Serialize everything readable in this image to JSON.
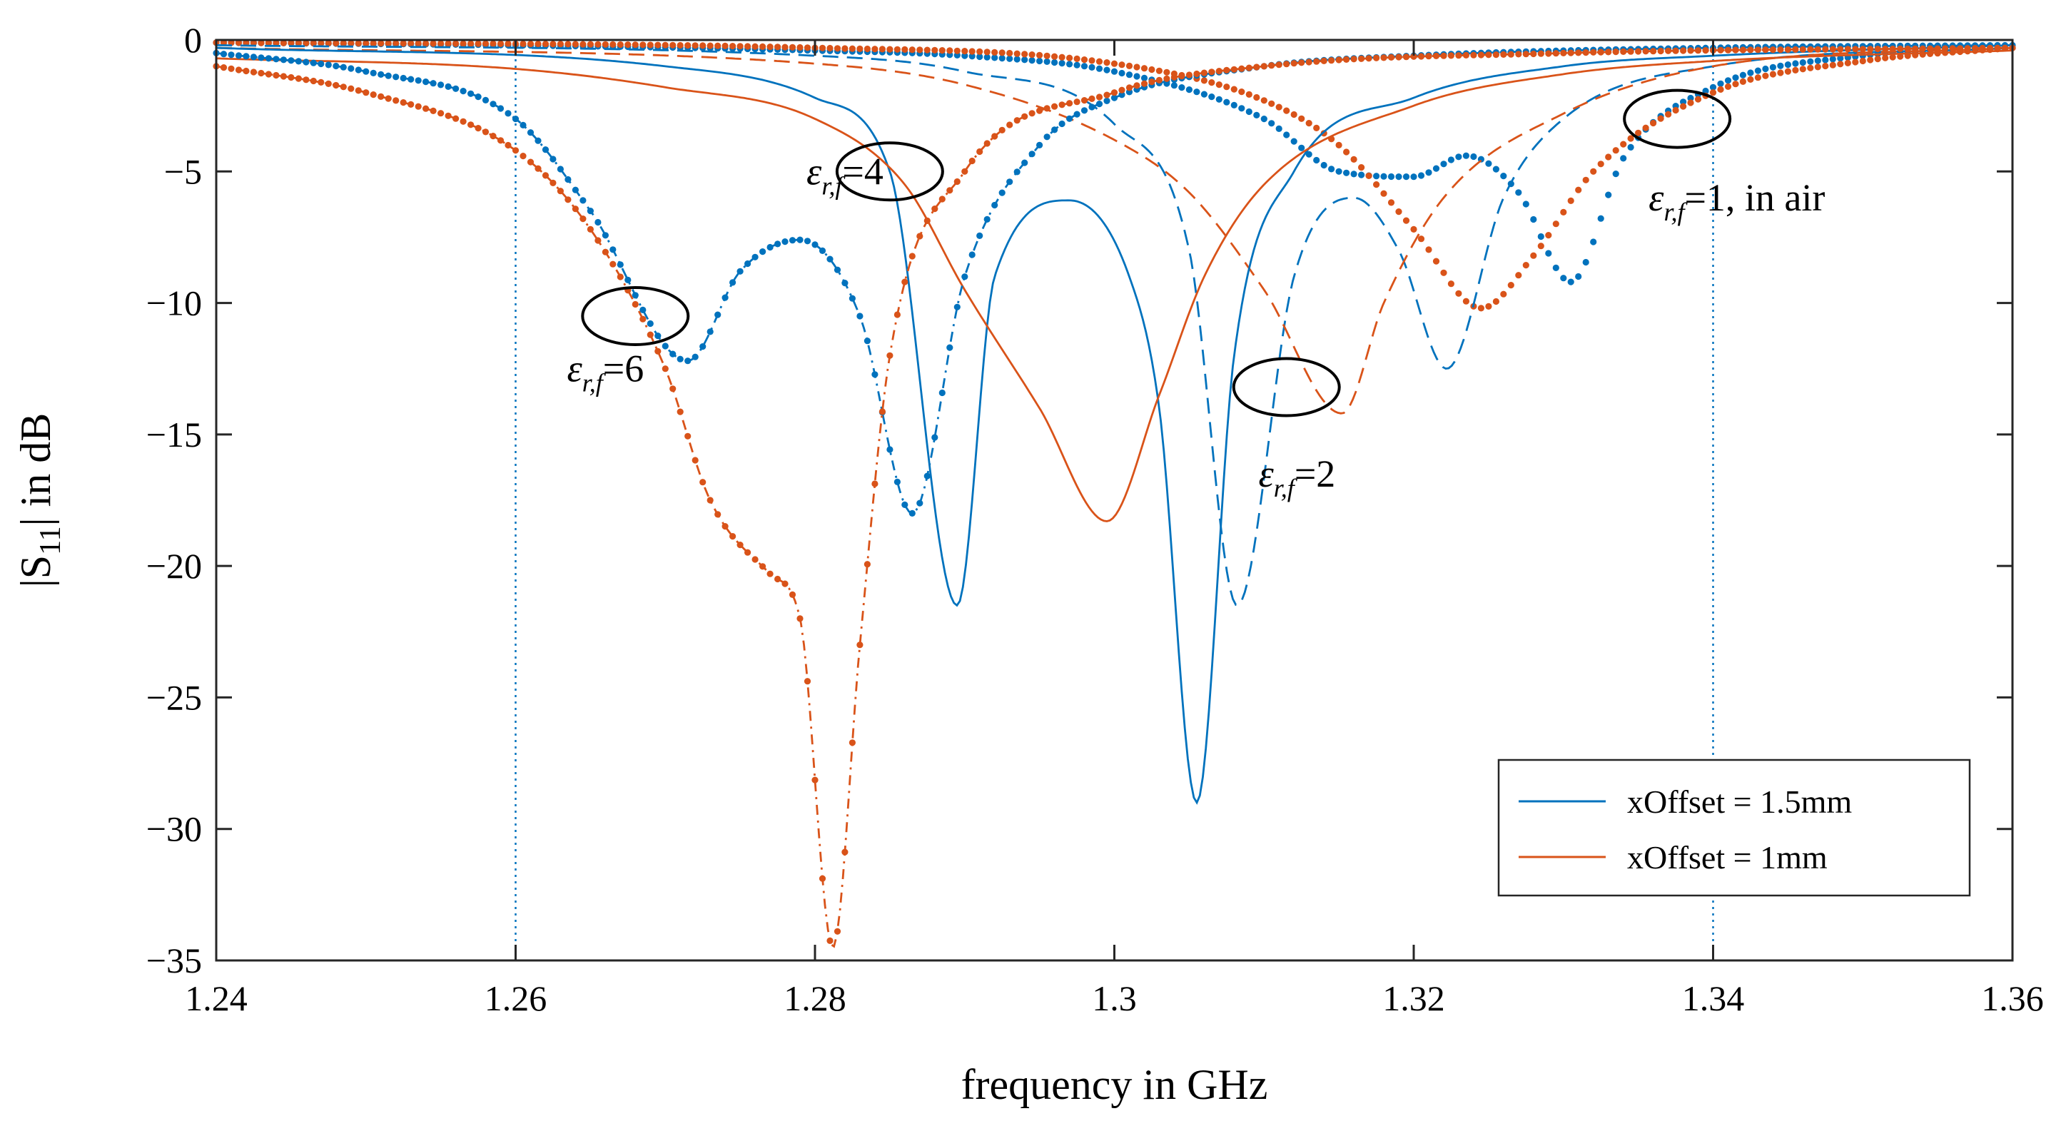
{
  "chart_data": {
    "type": "line",
    "title": "",
    "xlabel": "frequency in GHz",
    "ylabel_main": "|S",
    "ylabel_sub": "11",
    "ylabel_tail": "| in dB",
    "xlim": [
      1.24,
      1.36
    ],
    "ylim": [
      -35,
      0
    ],
    "xticks": [
      1.24,
      1.26,
      1.28,
      1.3,
      1.32,
      1.34,
      1.36
    ],
    "xtick_labels": [
      "1.24",
      "1.26",
      "1.28",
      "1.3",
      "1.32",
      "1.34",
      "1.36"
    ],
    "yticks": [
      0,
      -5,
      -10,
      -15,
      -20,
      -25,
      -30,
      -35
    ],
    "ytick_labels": [
      "0",
      "−5",
      "−10",
      "−15",
      "−20",
      "−25",
      "−30",
      "−35"
    ],
    "vlines": [
      1.26,
      1.34
    ],
    "colors": {
      "xoffset_1_5": "#0072BD",
      "xoffset_1": "#D95319"
    },
    "legend": {
      "position": "bottom-right",
      "entries": [
        {
          "label": "xOffset = 1.5mm",
          "color": "#0072BD"
        },
        {
          "label": "xOffset = 1mm",
          "color": "#D95319"
        }
      ]
    },
    "annotations": [
      {
        "eps": "ε",
        "sub": "r,f",
        "text": "=4",
        "target": [
          1.285,
          -5
        ],
        "label_at": [
          1.282,
          -5
        ]
      },
      {
        "eps": "ε",
        "sub": "r,f",
        "text": "=6",
        "target": [
          1.268,
          -10.5
        ],
        "label_at": [
          1.266,
          -12.5
        ]
      },
      {
        "eps": "ε",
        "sub": "r,f",
        "text": "=2",
        "target": [
          1.3115,
          -13.2
        ],
        "label_at": [
          1.3122,
          -16.5
        ]
      },
      {
        "eps": "ε",
        "sub": "r,f",
        "text": "=1, in air",
        "target": [
          1.3376,
          -3
        ],
        "label_at": [
          1.3376,
          -6
        ]
      }
    ],
    "series": [
      {
        "name": "eps=1, xOffset=1.5mm",
        "color": "#0072BD",
        "style": "dotted",
        "x": [
          1.24,
          1.26,
          1.28,
          1.29,
          1.3,
          1.31,
          1.315,
          1.32,
          1.3235,
          1.327,
          1.3305,
          1.334,
          1.34,
          1.35,
          1.36
        ],
        "y": [
          -0.1,
          -0.2,
          -0.4,
          -0.6,
          -1.2,
          -3.0,
          -5.0,
          -5.2,
          -4.4,
          -5.8,
          -9.2,
          -4.5,
          -1.8,
          -0.6,
          -0.3
        ]
      },
      {
        "name": "eps=1, xOffset=1mm",
        "color": "#D95319",
        "style": "dotted",
        "x": [
          1.24,
          1.28,
          1.3,
          1.31,
          1.315,
          1.32,
          1.3245,
          1.328,
          1.332,
          1.34,
          1.35,
          1.36
        ],
        "y": [
          -0.1,
          -0.3,
          -0.9,
          -2.3,
          -4.0,
          -7.2,
          -10.2,
          -8.2,
          -5.0,
          -2.0,
          -0.8,
          -0.3
        ]
      },
      {
        "name": "eps=2, xOffset=1.5mm",
        "color": "#0072BD",
        "style": "dashed",
        "x": [
          1.24,
          1.28,
          1.29,
          1.3,
          1.305,
          1.3082,
          1.312,
          1.316,
          1.319,
          1.3222,
          1.326,
          1.33,
          1.34,
          1.36
        ],
        "y": [
          -0.2,
          -0.6,
          -1.2,
          -3.2,
          -8.0,
          -21.5,
          -9.0,
          -6.0,
          -8.0,
          -12.5,
          -6.0,
          -3.0,
          -1.0,
          -0.3
        ]
      },
      {
        "name": "eps=2, xOffset=1mm",
        "color": "#D95319",
        "style": "dashed",
        "x": [
          1.24,
          1.28,
          1.29,
          1.3,
          1.305,
          1.31,
          1.3152,
          1.318,
          1.322,
          1.33,
          1.34,
          1.36
        ],
        "y": [
          -0.3,
          -0.9,
          -1.7,
          -3.8,
          -5.8,
          -9.5,
          -14.2,
          -10.0,
          -6.0,
          -2.8,
          -1.0,
          -0.3
        ]
      },
      {
        "name": "eps=4, xOffset=1.5mm",
        "color": "#0072BD",
        "style": "solid",
        "x": [
          1.24,
          1.27,
          1.28,
          1.285,
          1.2895,
          1.292,
          1.297,
          1.301,
          1.303,
          1.3055,
          1.308,
          1.312,
          1.32,
          1.33,
          1.34,
          1.36
        ],
        "y": [
          -0.3,
          -1.0,
          -2.2,
          -5.0,
          -21.5,
          -9.0,
          -6.1,
          -9.0,
          -14.0,
          -29.0,
          -12.0,
          -5.0,
          -2.2,
          -1.0,
          -0.6,
          -0.2
        ]
      },
      {
        "name": "eps=4, xOffset=1mm",
        "color": "#D95319",
        "style": "solid",
        "x": [
          1.24,
          1.26,
          1.27,
          1.28,
          1.286,
          1.29,
          1.295,
          1.2995,
          1.303,
          1.306,
          1.31,
          1.32,
          1.33,
          1.34,
          1.36
        ],
        "y": [
          -0.7,
          -1.1,
          -1.8,
          -3.0,
          -5.5,
          -9.5,
          -14.0,
          -18.3,
          -13.5,
          -9.0,
          -5.5,
          -2.5,
          -1.3,
          -0.8,
          -0.4
        ]
      },
      {
        "name": "eps=6, xOffset=1.5mm",
        "color": "#0072BD",
        "style": "dot-dash",
        "x": [
          1.24,
          1.25,
          1.26,
          1.265,
          1.2715,
          1.275,
          1.279,
          1.283,
          1.2865,
          1.29,
          1.295,
          1.3,
          1.31,
          1.32,
          1.34,
          1.36
        ],
        "y": [
          -0.5,
          -1.2,
          -3.0,
          -6.5,
          -12.2,
          -8.8,
          -7.6,
          -10.5,
          -18.0,
          -9.0,
          -4.0,
          -2.2,
          -1.0,
          -0.6,
          -0.3,
          -0.2
        ]
      },
      {
        "name": "eps=6, xOffset=1mm",
        "color": "#D95319",
        "style": "dot-dash",
        "x": [
          1.24,
          1.25,
          1.26,
          1.265,
          1.27,
          1.273,
          1.277,
          1.279,
          1.2812,
          1.283,
          1.285,
          1.29,
          1.3,
          1.31,
          1.33,
          1.36
        ],
        "y": [
          -1.0,
          -2.0,
          -4.2,
          -7.2,
          -12.5,
          -17.5,
          -20.3,
          -22.0,
          -34.5,
          -23.0,
          -12.0,
          -5.0,
          -2.0,
          -1.0,
          -0.5,
          -0.3
        ]
      }
    ]
  }
}
